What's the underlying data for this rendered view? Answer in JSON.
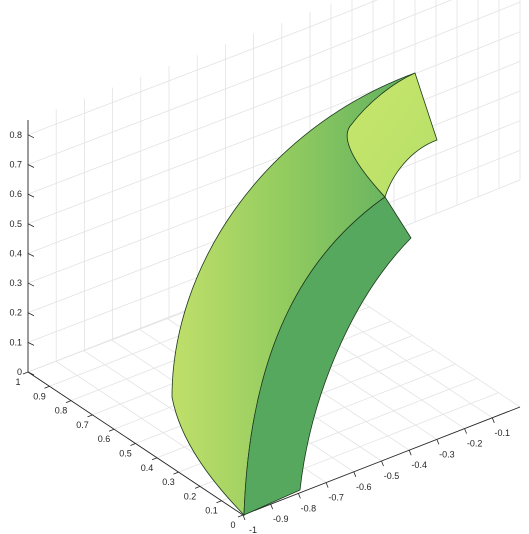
{
  "chart_data": {
    "type": "surface3d",
    "grid": true,
    "axes": {
      "x": {
        "range": [
          -1,
          0
        ],
        "ticks": [
          "-1",
          "-0.9",
          "-0.8",
          "-0.7",
          "-0.6",
          "-0.5",
          "-0.4",
          "-0.3",
          "-0.2",
          "-0.1"
        ]
      },
      "y": {
        "range": [
          0,
          1
        ],
        "ticks": [
          "0",
          "0.1",
          "0.2",
          "0.3",
          "0.4",
          "0.5",
          "0.6",
          "0.7",
          "0.8",
          "0.9",
          "1"
        ]
      },
      "z": {
        "range": [
          0,
          0.85
        ],
        "ticks": [
          "0",
          "0.1",
          "0.2",
          "0.3",
          "0.4",
          "0.5",
          "0.6",
          "0.7",
          "0.8"
        ]
      }
    },
    "colors": {
      "surface_light": "#c6e46a",
      "surface_mid": "#86c65e",
      "surface_dark": "#57a85f",
      "edge": "#1e3a1e",
      "grid": "#e3e3e3",
      "axis": "#262626"
    }
  }
}
